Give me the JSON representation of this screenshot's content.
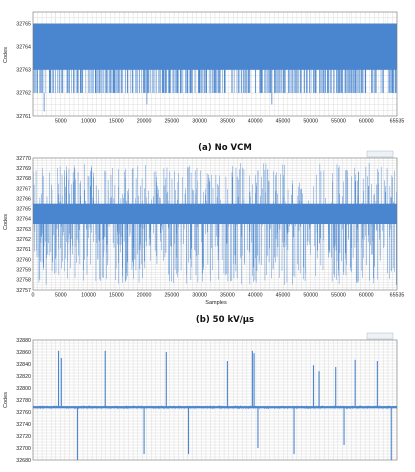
{
  "chart_data": [
    {
      "type": "line",
      "caption": "(a) No VCM",
      "xlabel": "",
      "ylabel": "Codes",
      "xlim": [
        0,
        65535
      ],
      "ylim": [
        32761,
        32765.5
      ],
      "x_ticks": [
        5000,
        10000,
        15000,
        20000,
        25000,
        30000,
        35000,
        40000,
        45000,
        50000,
        55000,
        60000,
        65535
      ],
      "y_ticks": [
        32761,
        32762,
        32763,
        32764,
        32765
      ],
      "band": [
        32762,
        32765
      ],
      "series": [
        {
          "band_low": 32762,
          "band_high": 32765,
          "dense_band": [
            32763,
            32765
          ],
          "spikes_up": [
            {
              "x": 4000,
              "y": 32765.5
            },
            {
              "x": 16500,
              "y": 32765.5
            },
            {
              "x": 49500,
              "y": 32765.5
            },
            {
              "x": 57000,
              "y": 32765.5
            },
            {
              "x": 63500,
              "y": 32765.5
            }
          ],
          "spikes_down": [
            {
              "x": 2000,
              "y": 32761.2
            },
            {
              "x": 20500,
              "y": 32761.5
            },
            {
              "x": 43000,
              "y": 32761.5
            }
          ]
        }
      ]
    },
    {
      "type": "line",
      "caption": "(b) 50 kV/μs",
      "xlabel": "Samples",
      "ylabel": "Codes",
      "xlim": [
        0,
        65535
      ],
      "ylim": [
        32757,
        32770
      ],
      "x_ticks": [
        0,
        5000,
        10000,
        15000,
        20000,
        25000,
        30000,
        35000,
        40000,
        45000,
        50000,
        55000,
        60000,
        65535
      ],
      "y_ticks": [
        32757,
        32758,
        32759,
        32760,
        32761,
        32762,
        32763,
        32764,
        32765,
        32766,
        32767,
        32768,
        32769,
        32770
      ],
      "series": [
        {
          "dense_band": [
            32763.5,
            32765.5
          ],
          "range": [
            32757.5,
            32769.5
          ]
        }
      ]
    },
    {
      "type": "line",
      "caption": "",
      "xlabel": "",
      "ylabel": "Codes",
      "xlim": [
        0,
        65535
      ],
      "ylim": [
        32680,
        32880
      ],
      "y_ticks": [
        32680,
        32700,
        32720,
        32740,
        32760,
        32780,
        32800,
        32820,
        32840,
        32860,
        32880
      ],
      "series": [
        {
          "baseline": 32768,
          "spikes_up": [
            {
              "x": 4600,
              "y": 32862
            },
            {
              "x": 5100,
              "y": 32850
            },
            {
              "x": 13000,
              "y": 32862
            },
            {
              "x": 24000,
              "y": 32860
            },
            {
              "x": 35000,
              "y": 32845
            },
            {
              "x": 39500,
              "y": 32862
            },
            {
              "x": 39800,
              "y": 32858
            },
            {
              "x": 50500,
              "y": 32838
            },
            {
              "x": 51500,
              "y": 32828
            },
            {
              "x": 54500,
              "y": 32835
            },
            {
              "x": 58000,
              "y": 32847
            },
            {
              "x": 62000,
              "y": 32845
            }
          ],
          "spikes_down": [
            {
              "x": 8000,
              "y": 32680
            },
            {
              "x": 20000,
              "y": 32690
            },
            {
              "x": 28000,
              "y": 32690
            },
            {
              "x": 40500,
              "y": 32700
            },
            {
              "x": 47000,
              "y": 32690
            },
            {
              "x": 56000,
              "y": 32705
            },
            {
              "x": 64500,
              "y": 32680
            }
          ]
        }
      ]
    }
  ]
}
